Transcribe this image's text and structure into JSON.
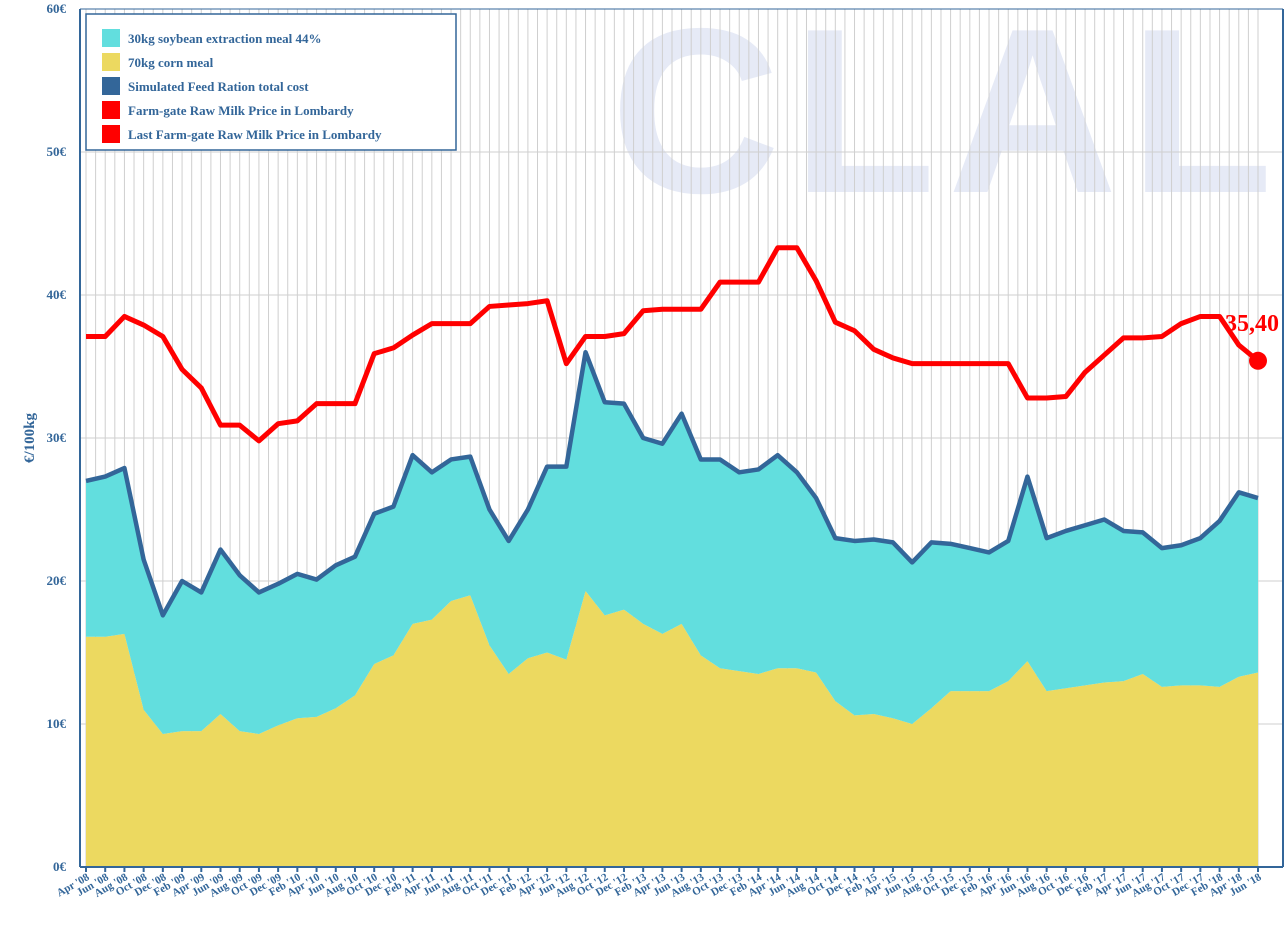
{
  "chart_data": {
    "type": "line",
    "watermark": "CLAL",
    "ylabel": "€/100kg",
    "legend": "upper left",
    "grid": true,
    "categories": [
      "Apr '08",
      "Jun '08",
      "Aug '08",
      "Oct '08",
      "Dec '08",
      "Feb '09",
      "Apr '09",
      "Jun '09",
      "Aug '09",
      "Oct '09",
      "Dec '09",
      "Feb '10",
      "Apr '10",
      "Jun '10",
      "Aug '10",
      "Oct '10",
      "Dec '10",
      "Feb '11",
      "Apr '11",
      "Jun '11",
      "Aug '11",
      "Oct '11",
      "Dec '11",
      "Feb '12",
      "Apr '12",
      "Jun '12",
      "Aug '12",
      "Oct '12",
      "Dec '12",
      "Feb '13",
      "Apr '13",
      "Jun '13",
      "Aug '13",
      "Oct '13",
      "Dec '13",
      "Feb '14",
      "Apr '14",
      "Jun '14",
      "Aug '14",
      "Oct '14",
      "Dec '14",
      "Feb '15",
      "Apr '15",
      "Jun '15",
      "Aug '15",
      "Oct '15",
      "Dec '15",
      "Feb '16",
      "Apr '16",
      "Jun '16",
      "Aug '16",
      "Oct '16",
      "Dec '16",
      "Feb '17",
      "Apr '17",
      "Jun '17",
      "Aug '17",
      "Oct '17",
      "Dec '17",
      "Feb '18",
      "Apr '18",
      "Jun '18"
    ],
    "ylim": [
      0,
      60
    ],
    "yticks": [
      {
        "value": 0,
        "label": "0€"
      },
      {
        "value": 10,
        "label": "10€"
      },
      {
        "value": 20,
        "label": "20€"
      },
      {
        "value": 30,
        "label": "30€"
      },
      {
        "value": 40,
        "label": "40€"
      },
      {
        "value": 50,
        "label": "50€"
      },
      {
        "value": 60,
        "label": "60€"
      }
    ],
    "series": [
      {
        "name": "30kg soybean extraction meal 44%",
        "color": "#62dede",
        "type": "stacked_area",
        "values": [
          10.9,
          11.2,
          11.6,
          10.5,
          8.3,
          10.5,
          9.7,
          11.5,
          10.9,
          9.9,
          9.9,
          10.1,
          9.6,
          10.0,
          9.7,
          10.5,
          10.4,
          11.8,
          10.3,
          9.9,
          9.7,
          9.5,
          9.3,
          10.4,
          13.0,
          13.5,
          16.7,
          14.9,
          14.4,
          13.0,
          13.3,
          14.7,
          13.7,
          14.6,
          13.9,
          14.3,
          14.9,
          13.7,
          12.2,
          11.4,
          12.2,
          12.2,
          12.3,
          11.3,
          11.6,
          10.3,
          10.0,
          9.7,
          9.8,
          12.9,
          10.7,
          11.0,
          11.2,
          11.4,
          10.5,
          9.9,
          9.7,
          9.8,
          10.3,
          11.6,
          12.9,
          12.2
        ]
      },
      {
        "name": "70kg corn meal",
        "color": "#ecd960",
        "type": "stacked_area",
        "values": [
          16.1,
          16.1,
          16.3,
          11.0,
          9.3,
          9.5,
          9.5,
          10.7,
          9.5,
          9.3,
          9.9,
          10.4,
          10.5,
          11.1,
          12.0,
          14.2,
          14.8,
          17.0,
          17.3,
          18.6,
          19.0,
          15.5,
          13.5,
          14.6,
          15.0,
          14.5,
          19.3,
          17.6,
          18.0,
          17.0,
          16.3,
          17.0,
          14.8,
          13.9,
          13.7,
          13.5,
          13.9,
          13.9,
          13.6,
          11.6,
          10.6,
          10.7,
          10.4,
          10.0,
          11.1,
          12.3,
          12.3,
          12.3,
          13.0,
          14.4,
          12.3,
          12.5,
          12.7,
          12.9,
          13.0,
          13.5,
          12.6,
          12.7,
          12.7,
          12.6,
          13.3,
          13.6
        ]
      },
      {
        "name": "Simulated Feed Ration total cost",
        "color": "#336699",
        "type": "line",
        "values": [
          27.0,
          27.3,
          27.9,
          21.5,
          17.6,
          20.0,
          19.2,
          22.2,
          20.4,
          19.2,
          19.8,
          20.5,
          20.1,
          21.1,
          21.7,
          24.7,
          25.2,
          28.8,
          27.6,
          28.5,
          28.7,
          25.0,
          22.8,
          25.0,
          28.0,
          28.0,
          36.0,
          32.5,
          32.4,
          30.0,
          29.6,
          31.7,
          28.5,
          28.5,
          27.6,
          27.8,
          28.8,
          27.6,
          25.8,
          23.0,
          22.8,
          22.9,
          22.7,
          21.3,
          22.7,
          22.6,
          22.3,
          22.0,
          22.8,
          27.3,
          23.0,
          23.5,
          23.9,
          24.3,
          23.5,
          23.4,
          22.3,
          22.5,
          23.0,
          24.2,
          26.2,
          25.8
        ]
      },
      {
        "name": "Farm-gate Raw Milk Price in Lombardy",
        "color": "#ff0000",
        "type": "line",
        "values": [
          37.1,
          37.1,
          38.5,
          37.9,
          37.1,
          34.8,
          33.5,
          30.9,
          30.9,
          29.8,
          31.0,
          31.2,
          32.4,
          32.4,
          32.4,
          35.9,
          36.3,
          37.2,
          38.0,
          38.0,
          38.0,
          39.2,
          39.3,
          39.4,
          39.6,
          35.2,
          37.1,
          37.1,
          37.3,
          38.9,
          39.0,
          39.0,
          39.0,
          40.9,
          40.9,
          40.9,
          43.3,
          43.3,
          41.0,
          38.1,
          37.5,
          36.2,
          35.6,
          35.2,
          35.2,
          35.2,
          35.2,
          35.2,
          35.2,
          32.8,
          32.8,
          32.9,
          34.6,
          35.8,
          37.0,
          37.0,
          37.1,
          38.0,
          38.5,
          38.5,
          36.5,
          35.4
        ]
      },
      {
        "name": "Last Farm-gate Raw Milk Price in Lombardy",
        "color": "#ff0000",
        "type": "point",
        "values": [
          null,
          null,
          null,
          null,
          null,
          null,
          null,
          null,
          null,
          null,
          null,
          null,
          null,
          null,
          null,
          null,
          null,
          null,
          null,
          null,
          null,
          null,
          null,
          null,
          null,
          null,
          null,
          null,
          null,
          null,
          null,
          null,
          null,
          null,
          null,
          null,
          null,
          null,
          null,
          null,
          null,
          null,
          null,
          null,
          null,
          null,
          null,
          null,
          null,
          null,
          null,
          null,
          null,
          null,
          null,
          null,
          null,
          null,
          null,
          null,
          null,
          35.4
        ],
        "value_labels": [
          null,
          null,
          null,
          null,
          null,
          null,
          null,
          null,
          null,
          null,
          null,
          null,
          null,
          null,
          null,
          null,
          null,
          null,
          null,
          null,
          null,
          null,
          null,
          null,
          null,
          null,
          null,
          null,
          null,
          null,
          null,
          null,
          null,
          null,
          null,
          null,
          null,
          null,
          null,
          null,
          null,
          null,
          null,
          null,
          null,
          null,
          null,
          null,
          null,
          null,
          null,
          null,
          null,
          null,
          null,
          null,
          null,
          null,
          null,
          null,
          null,
          "35,40"
        ]
      }
    ]
  }
}
